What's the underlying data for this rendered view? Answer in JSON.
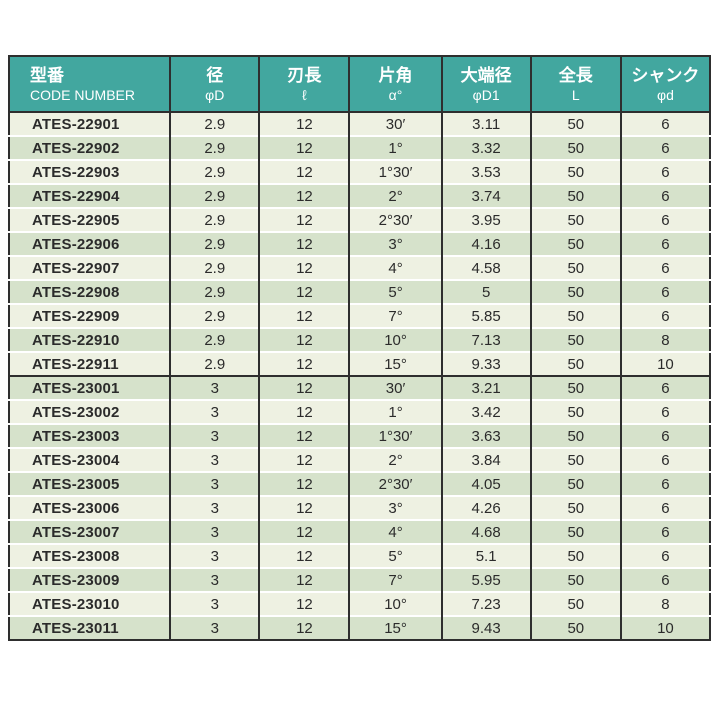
{
  "table": {
    "header": [
      {
        "label_jp": "型番",
        "label_sub": "CODE NUMBER"
      },
      {
        "label_jp": "径",
        "label_sub": "φD"
      },
      {
        "label_jp": "刃長",
        "label_sub": "ℓ"
      },
      {
        "label_jp": "片角",
        "label_sub": "α°"
      },
      {
        "label_jp": "大端径",
        "label_sub": "φD1"
      },
      {
        "label_jp": "全長",
        "label_sub": "L"
      },
      {
        "label_jp": "シャンク",
        "label_sub": "φd"
      }
    ],
    "rows": [
      [
        "ATES-22901",
        "2.9",
        "12",
        "30′",
        "3.11",
        "50",
        "6"
      ],
      [
        "ATES-22902",
        "2.9",
        "12",
        "1°",
        "3.32",
        "50",
        "6"
      ],
      [
        "ATES-22903",
        "2.9",
        "12",
        "1°30′",
        "3.53",
        "50",
        "6"
      ],
      [
        "ATES-22904",
        "2.9",
        "12",
        "2°",
        "3.74",
        "50",
        "6"
      ],
      [
        "ATES-22905",
        "2.9",
        "12",
        "2°30′",
        "3.95",
        "50",
        "6"
      ],
      [
        "ATES-22906",
        "2.9",
        "12",
        "3°",
        "4.16",
        "50",
        "6"
      ],
      [
        "ATES-22907",
        "2.9",
        "12",
        "4°",
        "4.58",
        "50",
        "6"
      ],
      [
        "ATES-22908",
        "2.9",
        "12",
        "5°",
        "5",
        "50",
        "6"
      ],
      [
        "ATES-22909",
        "2.9",
        "12",
        "7°",
        "5.85",
        "50",
        "6"
      ],
      [
        "ATES-22910",
        "2.9",
        "12",
        "10°",
        "7.13",
        "50",
        "8"
      ],
      [
        "ATES-22911",
        "2.9",
        "12",
        "15°",
        "9.33",
        "50",
        "10"
      ],
      [
        "ATES-23001",
        "3",
        "12",
        "30′",
        "3.21",
        "50",
        "6"
      ],
      [
        "ATES-23002",
        "3",
        "12",
        "1°",
        "3.42",
        "50",
        "6"
      ],
      [
        "ATES-23003",
        "3",
        "12",
        "1°30′",
        "3.63",
        "50",
        "6"
      ],
      [
        "ATES-23004",
        "3",
        "12",
        "2°",
        "3.84",
        "50",
        "6"
      ],
      [
        "ATES-23005",
        "3",
        "12",
        "2°30′",
        "4.05",
        "50",
        "6"
      ],
      [
        "ATES-23006",
        "3",
        "12",
        "3°",
        "4.26",
        "50",
        "6"
      ],
      [
        "ATES-23007",
        "3",
        "12",
        "4°",
        "4.68",
        "50",
        "6"
      ],
      [
        "ATES-23008",
        "3",
        "12",
        "5°",
        "5.1",
        "50",
        "6"
      ],
      [
        "ATES-23009",
        "3",
        "12",
        "7°",
        "5.95",
        "50",
        "6"
      ],
      [
        "ATES-23010",
        "3",
        "12",
        "10°",
        "7.23",
        "50",
        "8"
      ],
      [
        "ATES-23011",
        "3",
        "12",
        "15°",
        "9.43",
        "50",
        "10"
      ]
    ],
    "group_breaks": [
      11
    ],
    "colors": {
      "header_bg": "#42a79f",
      "header_text": "#ffffff",
      "row_light": "#eef1e2",
      "row_green": "#d6e2cb",
      "border_dark": "#2e2e2e",
      "row_separator": "#ffffff",
      "cell_text": "#2b2b2b"
    }
  }
}
